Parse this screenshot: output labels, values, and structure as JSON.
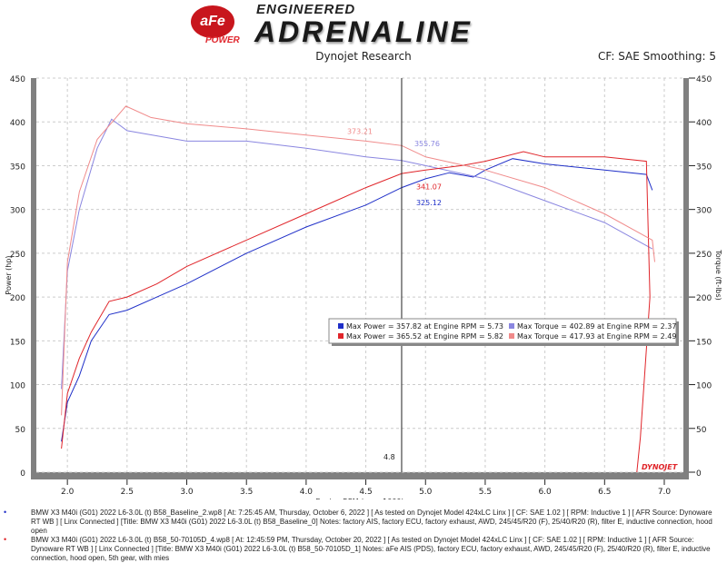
{
  "header": {
    "logo_text": "aFe POWER",
    "logo_tagline_top": "ENGINEERED",
    "logo_tagline_main": "ADRENALINE",
    "subtitle": "Dynojet Research",
    "cf_info": "CF: SAE Smoothing: 5"
  },
  "chart_data": {
    "type": "line",
    "xlabel": "Engine RPM (rpmx1000)",
    "ylabel": "Power (hp)",
    "ylabel_right": "Torque (ft-lbs)",
    "xlim": [
      1.74,
      7.16
    ],
    "ylim": [
      0,
      450
    ],
    "xticks": [
      "2.0",
      "2.5",
      "3.0",
      "3.5",
      "4.0",
      "4.5",
      "5.0",
      "5.5",
      "6.0",
      "6.5",
      "7.0"
    ],
    "yticks": [
      "0",
      "50",
      "100",
      "150",
      "200",
      "250",
      "300",
      "350",
      "400",
      "450"
    ],
    "grid": true,
    "cursor": {
      "x": 4.8,
      "label": "4.8",
      "values": [
        "373.21",
        "355.76",
        "341.07",
        "325.12"
      ]
    },
    "colors": {
      "base_power": "#1f2fc8",
      "base_torque": "#8a86e0",
      "afe_power": "#e0252a",
      "afe_torque": "#f08a8a"
    },
    "series": [
      {
        "key": "base_power",
        "x": [
          1.95,
          2.0,
          2.1,
          2.2,
          2.35,
          2.5,
          2.75,
          3.0,
          3.5,
          4.0,
          4.5,
          4.8,
          5.0,
          5.2,
          5.4,
          5.5,
          5.73,
          6.0,
          6.5,
          6.85,
          6.9
        ],
        "values": [
          35,
          80,
          110,
          150,
          180,
          185,
          200,
          215,
          250,
          280,
          305,
          325,
          335,
          342,
          337,
          345,
          358,
          352,
          345,
          340,
          322
        ]
      },
      {
        "key": "base_torque",
        "x": [
          1.95,
          2.0,
          2.1,
          2.25,
          2.37,
          2.5,
          3.0,
          3.5,
          4.0,
          4.5,
          4.8,
          5.0,
          5.5,
          6.0,
          6.5,
          6.9
        ],
        "values": [
          95,
          230,
          300,
          370,
          403,
          390,
          378,
          378,
          370,
          360,
          356,
          350,
          335,
          310,
          285,
          255
        ]
      },
      {
        "key": "afe_power",
        "x": [
          1.95,
          2.0,
          2.1,
          2.2,
          2.35,
          2.5,
          2.75,
          3.0,
          3.5,
          4.0,
          4.5,
          4.8,
          5.0,
          5.3,
          5.5,
          5.82,
          6.0,
          6.5,
          6.85,
          6.88,
          6.8,
          6.77
        ],
        "values": [
          27,
          90,
          130,
          160,
          195,
          200,
          215,
          235,
          265,
          295,
          325,
          341,
          345,
          350,
          355,
          366,
          360,
          360,
          355,
          200,
          40,
          0
        ]
      },
      {
        "key": "afe_torque",
        "x": [
          1.95,
          2.0,
          2.1,
          2.25,
          2.49,
          2.7,
          3.0,
          3.5,
          4.0,
          4.5,
          4.8,
          5.0,
          5.5,
          6.0,
          6.5,
          6.9,
          6.92
        ],
        "values": [
          65,
          240,
          320,
          380,
          418,
          405,
          398,
          392,
          385,
          378,
          373,
          360,
          345,
          325,
          295,
          265,
          240
        ]
      }
    ],
    "legend": {
      "placement": "center-right",
      "rows": [
        {
          "color": "#1f2fc8",
          "text": "Max Power = 357.82 at Engine RPM = 5.73"
        },
        {
          "color": "#8a86e0",
          "text": "Max Torque = 402.89 at Engine RPM = 2.37"
        },
        {
          "color": "#e0252a",
          "text": "Max Power = 365.52 at Engine RPM = 5.82"
        },
        {
          "color": "#f08a8a",
          "text": "Max Torque = 417.93 at Engine RPM = 2.49"
        }
      ]
    },
    "watermark": "DYNOJET"
  },
  "notes": [
    "BMW X3 M40i (G01) 2022 L6-3.0L (t) B58_Baseline_2.wp8 [ At: 7:25:45 AM, Thursday, October 6, 2022 ] [ As tested on Dynojet Model 424xLC Linx ] [ CF: SAE 1.02 ] [ RPM: Inductive 1 ] [ AFR Source: Dynoware RT WB ] [ Linx",
    "Connected ] [Title: BMW X3 M40i (G01) 2022 L6-3.0L (t) B58_Baseline_0]  Notes: factory AIS, factory ECU, factory exhaust, AWD, 245/45/R20 (F), 25/40/R20 (R), filter E, inductive connection, hood open",
    "BMW X3 M40i (G01) 2022 L6-3.0L (t) B58_50-70105D_4.wp8 [ At: 12:45:59 PM, Thursday, October 20, 2022 ] [ As tested on Dynojet Model 424xLC Linx ] [ CF: SAE 1.02 ] [ RPM: Inductive 1 ] [ AFR Source: Dynoware RT WB ]",
    "[ Linx Connected ] [Title: BMW X3 M40i (G01) 2022 L6-3.0L (t) B58_50-70105D_1]  Notes: aFe AIS (PDS), factory ECU, factory exhaust, AWD, 245/45/R20 (F), 25/40/R20 (R), filter E, inductive connection, hood open, 5th gear, with mies"
  ]
}
